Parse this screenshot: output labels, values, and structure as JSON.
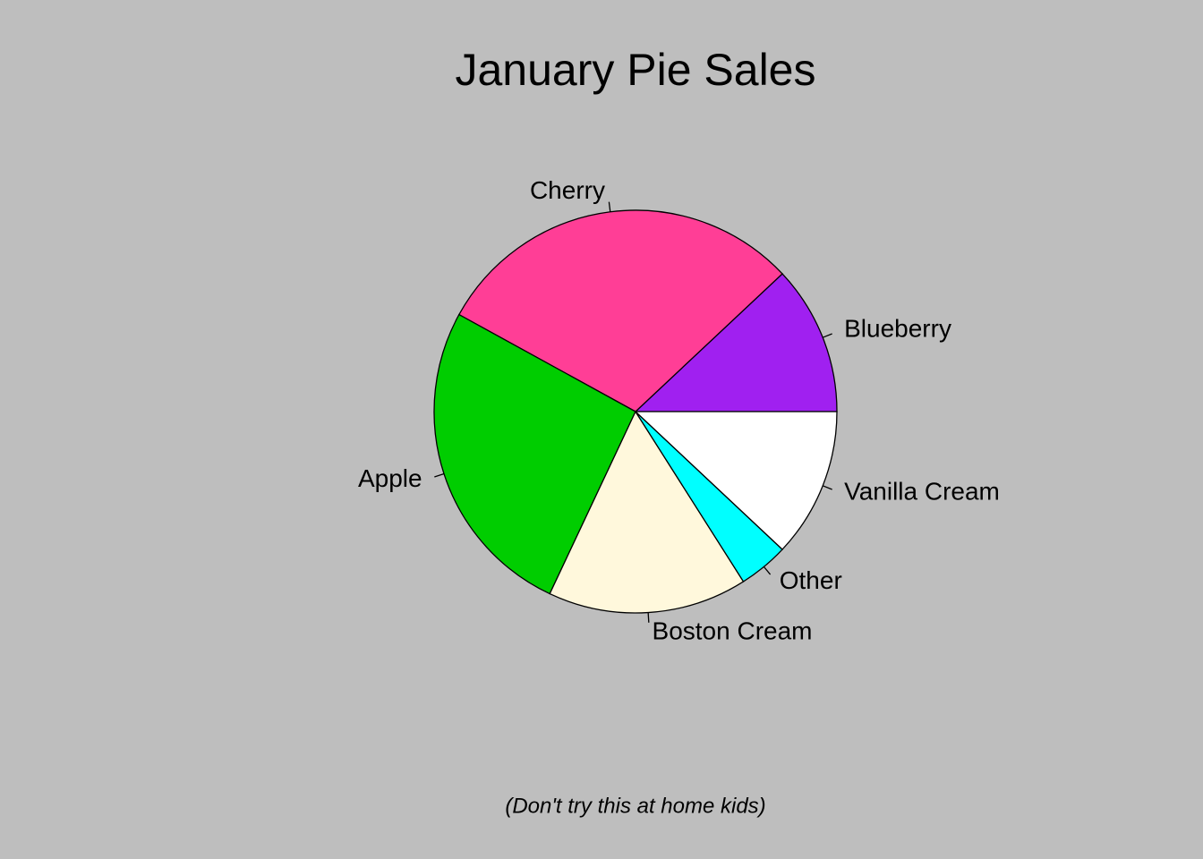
{
  "chart_data": {
    "type": "pie",
    "title": "January Pie Sales",
    "subtitle": "(Don't try this at home kids)",
    "categories": [
      "Blueberry",
      "Cherry",
      "Apple",
      "Boston Cream",
      "Other",
      "Vanilla Cream"
    ],
    "values": [
      12,
      30,
      26,
      16,
      4,
      12
    ],
    "colors": [
      "#a020f0",
      "#ff3e96",
      "#00cd00",
      "#fff8dc",
      "#00ffff",
      "#ffffff"
    ]
  }
}
